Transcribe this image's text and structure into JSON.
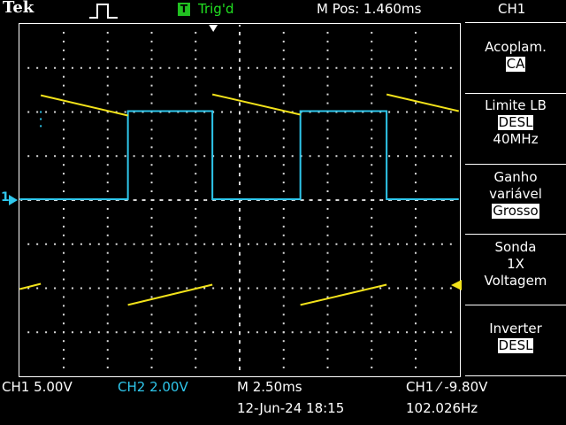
{
  "header": {
    "brand": "Tek",
    "trigger_badge": "T",
    "trigger_status": "Trig'd",
    "position": "M Pos: 1.460ms",
    "menu_title": "CH1"
  },
  "menu": {
    "coupling_label": "Acoplam.",
    "coupling_value": "CA",
    "bwlimit_label": "Limite LB",
    "bwlimit_value": "DESL",
    "bwlimit_freq": "40MHz",
    "gain_label_1": "Ganho",
    "gain_label_2": "variável",
    "gain_value": "Grosso",
    "probe_label": "Sonda",
    "probe_atten": "1X",
    "probe_type": "Voltagem",
    "invert_label": "Inverter",
    "invert_value": "DESL"
  },
  "footer": {
    "ch1_scale": "CH1  5.00V",
    "ch2_scale": "CH2  2.00V",
    "timebase": "M 2.50ms",
    "trigger_setting": "CH1 ⁄ -9.80V",
    "date_time": "12-Jun-24 18:15",
    "frequency": "102.026Hz"
  },
  "markers": {
    "ch1_ground": "1"
  },
  "colors": {
    "ch1": "#f2e21a",
    "ch2": "#2fc7ec",
    "trigger_badge": "#21c021"
  }
}
